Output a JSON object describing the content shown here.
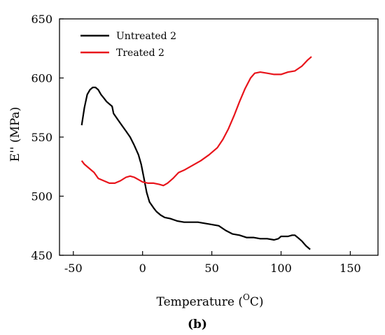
{
  "chart_data": {
    "type": "line",
    "title": "",
    "xlabel_main": "Temperature (",
    "xlabel_sup": "O",
    "xlabel_end": "C)",
    "ylabel": "E'' (MPa)",
    "panel_label": "(b)",
    "xlim": [
      -60,
      170
    ],
    "ylim": [
      450,
      650
    ],
    "xticks": [
      -50,
      0,
      50,
      100,
      150
    ],
    "xtick_labels": [
      "-50",
      "0",
      "50",
      "100",
      "150"
    ],
    "yticks": [
      450,
      500,
      550,
      600,
      650
    ],
    "ytick_labels": [
      "450",
      "500",
      "550",
      "600",
      "650"
    ],
    "legend_position": "top-left",
    "series": [
      {
        "name": "Untreated 2",
        "color": "#000000",
        "points": [
          [
            -44,
            560
          ],
          [
            -42,
            575
          ],
          [
            -40,
            586
          ],
          [
            -38,
            590
          ],
          [
            -36,
            592
          ],
          [
            -34,
            592
          ],
          [
            -32,
            590
          ],
          [
            -30,
            586
          ],
          [
            -28,
            583
          ],
          [
            -26,
            580
          ],
          [
            -24,
            578
          ],
          [
            -22,
            576
          ],
          [
            -21,
            570
          ],
          [
            -18,
            565
          ],
          [
            -15,
            560
          ],
          [
            -12,
            555
          ],
          [
            -9,
            550
          ],
          [
            -6,
            543
          ],
          [
            -3,
            535
          ],
          [
            -1,
            527
          ],
          [
            1,
            515
          ],
          [
            3,
            503
          ],
          [
            5,
            495
          ],
          [
            8,
            490
          ],
          [
            10,
            487
          ],
          [
            13,
            484
          ],
          [
            16,
            482
          ],
          [
            20,
            481
          ],
          [
            25,
            479
          ],
          [
            30,
            478
          ],
          [
            40,
            478
          ],
          [
            50,
            476
          ],
          [
            55,
            475
          ],
          [
            60,
            471
          ],
          [
            65,
            468
          ],
          [
            70,
            467
          ],
          [
            75,
            465
          ],
          [
            80,
            465
          ],
          [
            85,
            464
          ],
          [
            90,
            464
          ],
          [
            95,
            463
          ],
          [
            98,
            464
          ],
          [
            100,
            466
          ],
          [
            105,
            466
          ],
          [
            108,
            467
          ],
          [
            110,
            467
          ],
          [
            112,
            465
          ],
          [
            115,
            462
          ],
          [
            118,
            458
          ],
          [
            121,
            455
          ]
        ]
      },
      {
        "name": "Treated 2",
        "color": "#e8141b",
        "points": [
          [
            -44,
            530
          ],
          [
            -42,
            527
          ],
          [
            -38,
            523
          ],
          [
            -35,
            520
          ],
          [
            -32,
            515
          ],
          [
            -28,
            513
          ],
          [
            -24,
            511
          ],
          [
            -20,
            511
          ],
          [
            -16,
            513
          ],
          [
            -12,
            516
          ],
          [
            -9,
            517
          ],
          [
            -6,
            516
          ],
          [
            -3,
            514
          ],
          [
            0,
            512
          ],
          [
            4,
            511
          ],
          [
            8,
            511
          ],
          [
            12,
            510
          ],
          [
            15,
            509
          ],
          [
            18,
            511
          ],
          [
            22,
            515
          ],
          [
            26,
            520
          ],
          [
            30,
            522
          ],
          [
            36,
            526
          ],
          [
            42,
            530
          ],
          [
            48,
            535
          ],
          [
            54,
            541
          ],
          [
            58,
            548
          ],
          [
            62,
            557
          ],
          [
            66,
            568
          ],
          [
            70,
            580
          ],
          [
            74,
            591
          ],
          [
            78,
            600
          ],
          [
            81,
            604
          ],
          [
            85,
            605
          ],
          [
            90,
            604
          ],
          [
            95,
            603
          ],
          [
            100,
            603
          ],
          [
            105,
            605
          ],
          [
            110,
            606
          ],
          [
            115,
            610
          ],
          [
            119,
            615
          ],
          [
            122,
            618
          ]
        ]
      }
    ]
  }
}
